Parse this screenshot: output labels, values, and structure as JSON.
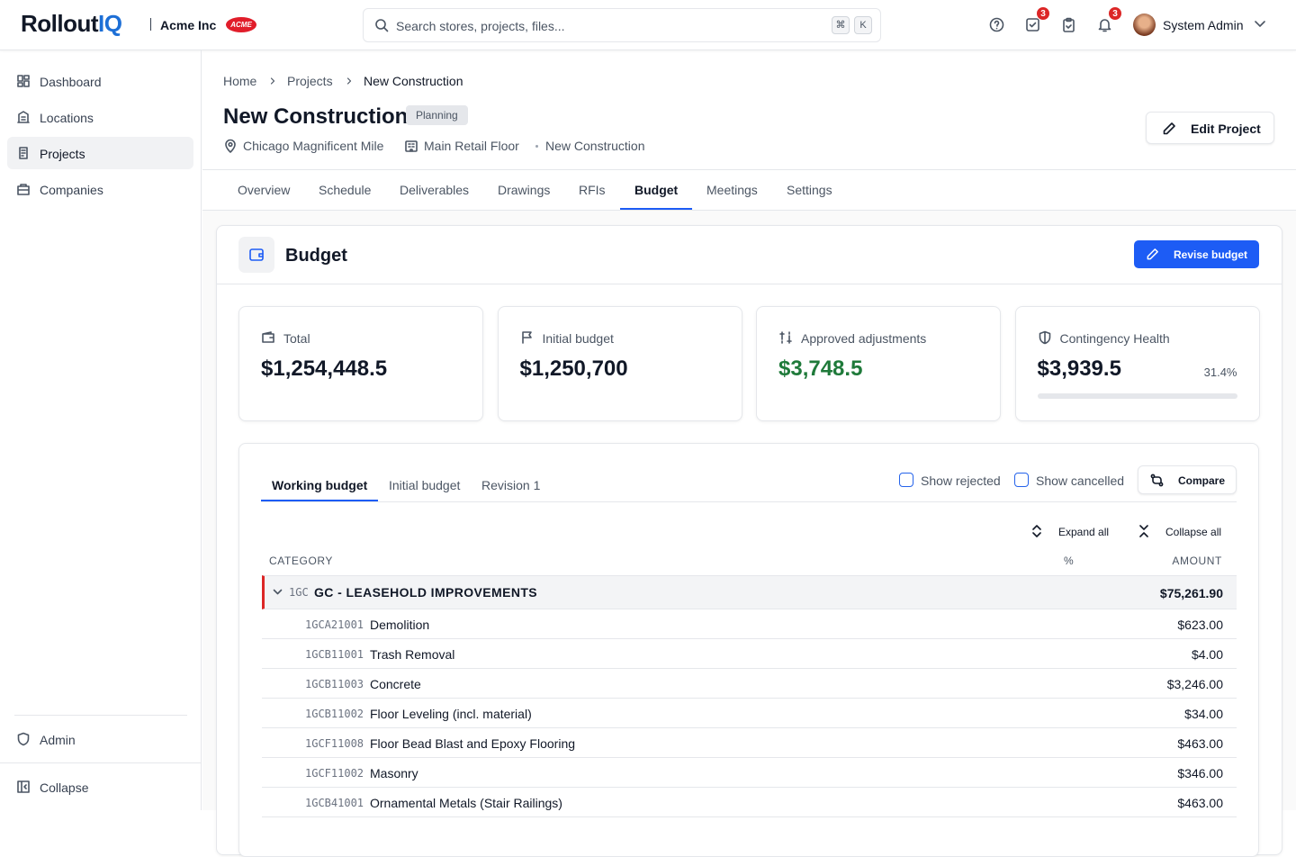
{
  "header": {
    "logo_primary": "Rollout",
    "logo_accent": "IQ",
    "organization": "Acme Inc",
    "organization_badge": "ACME",
    "search_placeholder": "Search stores, projects, files...",
    "shortcut_keys": [
      "⌘",
      "K"
    ],
    "task_count": 3,
    "notification_count": 3,
    "user_name": "System Admin"
  },
  "sidebar": {
    "nav": [
      "Dashboard",
      "Locations",
      "Projects",
      "Companies"
    ],
    "active_index": 2,
    "footer": [
      "Admin",
      "Collapse"
    ]
  },
  "breadcrumb": [
    "Home",
    "Projects",
    "New Construction"
  ],
  "project": {
    "title": "New Construction",
    "status": "Planning",
    "location": "Chicago Magnificent Mile",
    "area": "Main Retail Floor",
    "type": "New Construction",
    "edit_button": "Edit Project"
  },
  "tabs": {
    "items": [
      "Overview",
      "Schedule",
      "Deliverables",
      "Drawings",
      "RFIs",
      "Budget",
      "Meetings",
      "Settings"
    ],
    "active_index": 5
  },
  "budget": {
    "title": "Budget",
    "revise_button": "Revise budget",
    "stats": [
      {
        "label": "Total",
        "value": "$1,254,448.5"
      },
      {
        "label": "Initial budget",
        "value": "$1,250,700"
      },
      {
        "label": "Approved adjustments",
        "value": "$3,748.5",
        "color": "#1f7a3a"
      },
      {
        "label": "Contingency Health",
        "value": "$3,939.5",
        "percent": "31.4%"
      }
    ],
    "view_tabs": {
      "items": [
        "Working budget",
        "Initial budget",
        "Revision 1"
      ],
      "active_index": 0
    },
    "filters": [
      "Show rejected",
      "Show cancelled"
    ],
    "compare_button": "Compare",
    "expand_all": "Expand all",
    "collapse_all": "Collapse all",
    "table": {
      "columns": [
        "CATEGORY",
        "%",
        "AMOUNT"
      ],
      "group": {
        "code": "1GC",
        "name": "GC - LEASEHOLD IMPROVEMENTS",
        "amount": "$75,261.90"
      },
      "rows": [
        {
          "code": "1GCA21001",
          "name": "Demolition",
          "amount": "$623.00"
        },
        {
          "code": "1GCB11001",
          "name": "Trash Removal",
          "amount": "$4.00"
        },
        {
          "code": "1GCB11003",
          "name": "Concrete",
          "amount": "$3,246.00"
        },
        {
          "code": "1GCB11002",
          "name": "Floor Leveling (incl. material)",
          "amount": "$34.00"
        },
        {
          "code": "1GCF11008",
          "name": "Floor Bead Blast and Epoxy Flooring",
          "amount": "$463.00"
        },
        {
          "code": "1GCF11002",
          "name": "Masonry",
          "amount": "$346.00"
        },
        {
          "code": "1GCB41001",
          "name": "Ornamental Metals (Stair Railings)",
          "amount": "$463.00"
        }
      ]
    }
  }
}
